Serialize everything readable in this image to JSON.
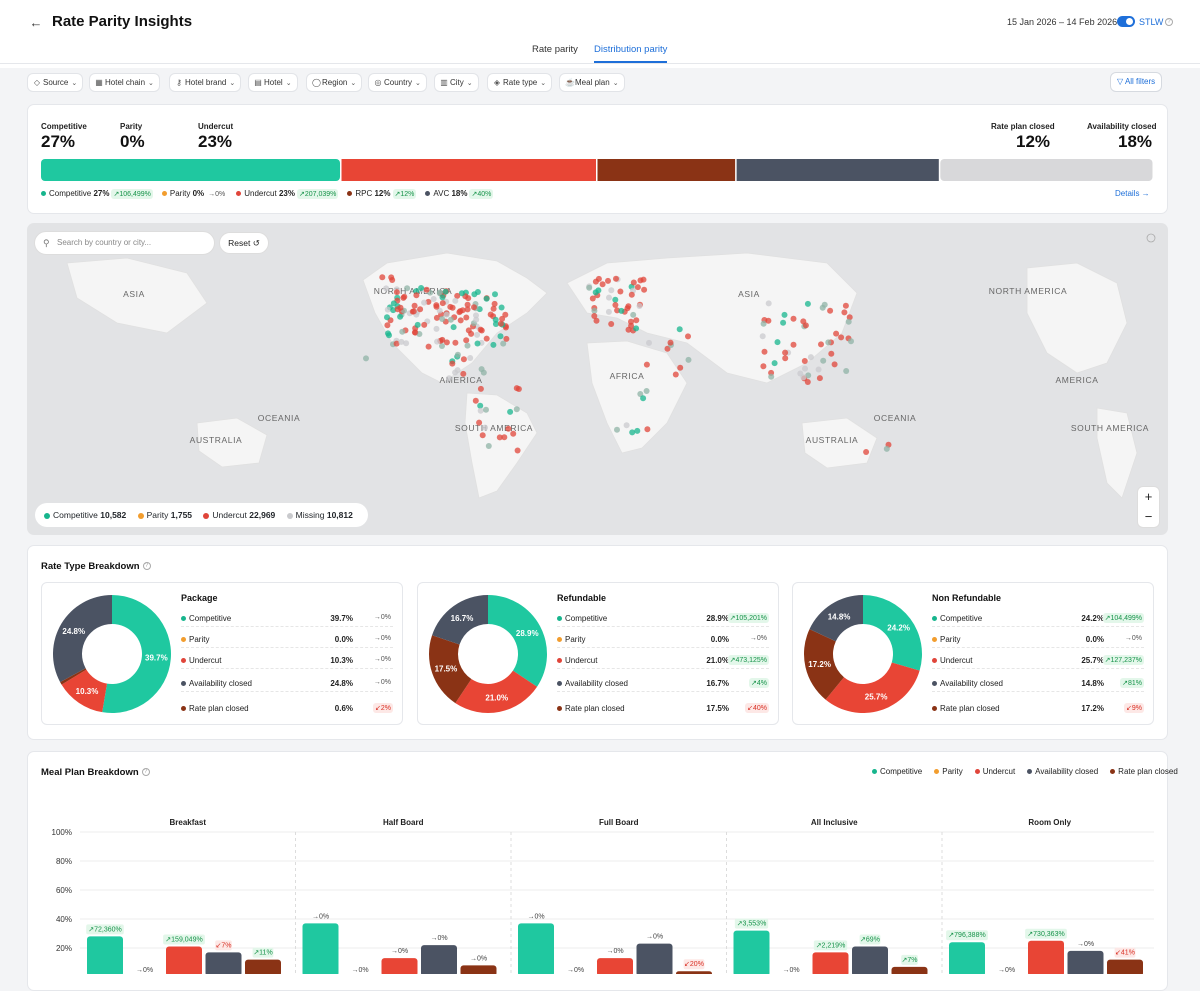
{
  "header": {
    "title": "Rate Parity Insights",
    "date_range": "15 Jan 2026 – 14 Feb 2026",
    "stlw_label": "STLW"
  },
  "tabs": [
    {
      "label": "Rate parity",
      "active": false
    },
    {
      "label": "Distribution parity",
      "active": true
    }
  ],
  "filters": [
    {
      "label": "Source",
      "icon": "source-icon"
    },
    {
      "label": "Hotel chain",
      "icon": "chain-icon"
    },
    {
      "label": "Hotel brand",
      "icon": "tag-icon"
    },
    {
      "label": "Hotel",
      "icon": "bed-icon"
    },
    {
      "label": "Region",
      "icon": "globe-icon"
    },
    {
      "label": "Country",
      "icon": "country-icon"
    },
    {
      "label": "City",
      "icon": "city-icon"
    },
    {
      "label": "Rate type",
      "icon": "rate-type-icon"
    },
    {
      "label": "Meal plan",
      "icon": "meal-icon"
    }
  ],
  "all_filters_label": "All filters",
  "summary": {
    "competitive": {
      "label": "Competitive",
      "value": "27%"
    },
    "parity": {
      "label": "Parity",
      "value": "0%"
    },
    "undercut": {
      "label": "Undercut",
      "value": "23%"
    },
    "rate_plan_closed": {
      "label": "Rate plan closed",
      "value": "12%"
    },
    "availability_closed": {
      "label": "Availability closed",
      "value": "18%"
    },
    "bar_segments": [
      {
        "name": "Competitive",
        "share": 27,
        "color": "#1fc8a0"
      },
      {
        "name": "Undercut",
        "share": 23,
        "color": "#e84535"
      },
      {
        "name": "RPC",
        "share": 12.5,
        "color": "#8a3315"
      },
      {
        "name": "AVC",
        "share": 18.3,
        "color": "#4b5363"
      },
      {
        "name": "Missing",
        "share": 19.2,
        "color": "#d8d8da"
      }
    ],
    "legend": [
      {
        "label": "Competitive",
        "value": "27%",
        "change": "106,499%",
        "dir": "up",
        "color": "#17b58d"
      },
      {
        "label": "Parity",
        "value": "0%",
        "change": "0%",
        "dir": "nt",
        "color": "#f29d2e"
      },
      {
        "label": "Undercut",
        "value": "23%",
        "change": "207,039%",
        "dir": "up",
        "color": "#e0453a"
      },
      {
        "label": "RPC",
        "value": "12%",
        "change": "12%",
        "dir": "up",
        "color": "#8a3315"
      },
      {
        "label": "AVC",
        "value": "18%",
        "change": "40%",
        "dir": "up",
        "color": "#4b5363"
      }
    ],
    "details_label": "Details"
  },
  "map": {
    "search_placeholder": "Search by country or city...",
    "reset_label": "Reset",
    "labels": [
      "ASIA",
      "NORTH AMERICA",
      "OCEANIA",
      "AUSTRALIA",
      "AMERICA",
      "SOUTH AMERICA",
      "AFRICA",
      "ASIA",
      "NORTH AMERICA",
      "OCEANIA",
      "AUSTRALIA",
      "AMERICA",
      "SOUTH AMERICA"
    ],
    "legend": [
      {
        "label": "Competitive",
        "value": "10,582",
        "color": "#17b58d"
      },
      {
        "label": "Parity",
        "value": "1,755",
        "color": "#f29d2e"
      },
      {
        "label": "Undercut",
        "value": "22,969",
        "color": "#e0453a"
      },
      {
        "label": "Missing",
        "value": "10,812",
        "color": "#c9cacd"
      }
    ]
  },
  "rate_type": {
    "title": "Rate Type Breakdown",
    "cards": [
      {
        "name": "Package",
        "rows": [
          {
            "label": "Competitive",
            "pct": "39.7%",
            "change": "0%",
            "dir": "nt",
            "color": "#17b58d"
          },
          {
            "label": "Parity",
            "pct": "0.0%",
            "change": "0%",
            "dir": "nt",
            "color": "#f29d2e"
          },
          {
            "label": "Undercut",
            "pct": "10.3%",
            "change": "0%",
            "dir": "nt",
            "color": "#e0453a"
          },
          {
            "label": "Availability closed",
            "pct": "24.8%",
            "change": "0%",
            "dir": "nt",
            "color": "#4b5363"
          },
          {
            "label": "Rate plan closed",
            "pct": "0.6%",
            "change": "2%",
            "dir": "dn",
            "color": "#8a3315"
          }
        ],
        "slices": [
          {
            "v": 39.7,
            "c": "#1fc8a0",
            "l": "39.7%"
          },
          {
            "v": 10.3,
            "c": "#e84535",
            "l": "10.3%"
          },
          {
            "v": 0.6,
            "c": "#8a3315",
            "l": ""
          },
          {
            "v": 24.8,
            "c": "#4b5363",
            "l": "24.8%"
          }
        ]
      },
      {
        "name": "Refundable",
        "rows": [
          {
            "label": "Competitive",
            "pct": "28.9%",
            "change": "105,201%",
            "dir": "up",
            "color": "#17b58d"
          },
          {
            "label": "Parity",
            "pct": "0.0%",
            "change": "0%",
            "dir": "nt",
            "color": "#f29d2e"
          },
          {
            "label": "Undercut",
            "pct": "21.0%",
            "change": "473,125%",
            "dir": "up",
            "color": "#e0453a"
          },
          {
            "label": "Availability closed",
            "pct": "16.7%",
            "change": "4%",
            "dir": "up",
            "color": "#4b5363"
          },
          {
            "label": "Rate plan closed",
            "pct": "17.5%",
            "change": "40%",
            "dir": "dn",
            "color": "#8a3315"
          }
        ],
        "slices": [
          {
            "v": 28.9,
            "c": "#1fc8a0",
            "l": "28.9%"
          },
          {
            "v": 21.0,
            "c": "#e84535",
            "l": "21.0%"
          },
          {
            "v": 17.5,
            "c": "#8a3315",
            "l": "17.5%"
          },
          {
            "v": 16.7,
            "c": "#4b5363",
            "l": "16.7%"
          }
        ]
      },
      {
        "name": "Non Refundable",
        "rows": [
          {
            "label": "Competitive",
            "pct": "24.2%",
            "change": "104,499%",
            "dir": "up",
            "color": "#17b58d"
          },
          {
            "label": "Parity",
            "pct": "0.0%",
            "change": "0%",
            "dir": "nt",
            "color": "#f29d2e"
          },
          {
            "label": "Undercut",
            "pct": "25.7%",
            "change": "127,237%",
            "dir": "up",
            "color": "#e0453a"
          },
          {
            "label": "Availability closed",
            "pct": "14.8%",
            "change": "81%",
            "dir": "up",
            "color": "#4b5363"
          },
          {
            "label": "Rate plan closed",
            "pct": "17.2%",
            "change": "9%",
            "dir": "dn",
            "color": "#8a3315"
          }
        ],
        "slices": [
          {
            "v": 24.2,
            "c": "#1fc8a0",
            "l": "24.2%"
          },
          {
            "v": 25.7,
            "c": "#e84535",
            "l": "25.7%"
          },
          {
            "v": 17.2,
            "c": "#8a3315",
            "l": "17.2%"
          },
          {
            "v": 14.8,
            "c": "#4b5363",
            "l": "14.8%"
          }
        ]
      }
    ]
  },
  "meal_plan": {
    "title": "Meal Plan Breakdown",
    "legend": [
      {
        "label": "Competitive",
        "color": "#17b58d"
      },
      {
        "label": "Parity",
        "color": "#f29d2e"
      },
      {
        "label": "Undercut",
        "color": "#e0453a"
      },
      {
        "label": "Availability closed",
        "color": "#4b5363"
      },
      {
        "label": "Rate plan closed",
        "color": "#8a3315"
      }
    ]
  },
  "chart_data": {
    "type": "bar",
    "categories": [
      "Breakfast",
      "Half Board",
      "Full Board",
      "All Inclusive",
      "Room Only"
    ],
    "ylim": [
      0,
      100
    ],
    "yticks": [
      "100%",
      "80%",
      "60%",
      "40%",
      "20%"
    ],
    "series": [
      {
        "name": "Competitive",
        "color": "#1fc8a0",
        "values": [
          28,
          37,
          37,
          32,
          24
        ],
        "changes": [
          "72,360%",
          "0%",
          "0%",
          "3,553%",
          "796,388%"
        ],
        "dirs": [
          "up",
          "nt",
          "nt",
          "up",
          "up"
        ]
      },
      {
        "name": "Parity",
        "color": "#f29d2e",
        "values": [
          0,
          0,
          0,
          0,
          0
        ],
        "changes": [
          "0%",
          "0%",
          "0%",
          "0%",
          "0%"
        ],
        "dirs": [
          "nt",
          "nt",
          "nt",
          "nt",
          "nt"
        ]
      },
      {
        "name": "Undercut",
        "color": "#e84535",
        "values": [
          21,
          13,
          13,
          17,
          25
        ],
        "changes": [
          "159,049%",
          "0%",
          "0%",
          "2,219%",
          "730,363%"
        ],
        "dirs": [
          "up",
          "nt",
          "nt",
          "up",
          "up"
        ]
      },
      {
        "name": "Availability closed",
        "color": "#4b5363",
        "values": [
          17,
          22,
          23,
          21,
          18
        ],
        "changes": [
          "7%",
          "0%",
          "0%",
          "69%",
          "0%"
        ],
        "dirs": [
          "dn",
          "nt",
          "nt",
          "up",
          "nt"
        ]
      },
      {
        "name": "Rate plan closed",
        "color": "#8a3315",
        "values": [
          12,
          8,
          4,
          7,
          12
        ],
        "changes": [
          "11%",
          "0%",
          "20%",
          "7%",
          "41%"
        ],
        "dirs": [
          "up",
          "nt",
          "dn",
          "up",
          "dn"
        ]
      }
    ]
  }
}
